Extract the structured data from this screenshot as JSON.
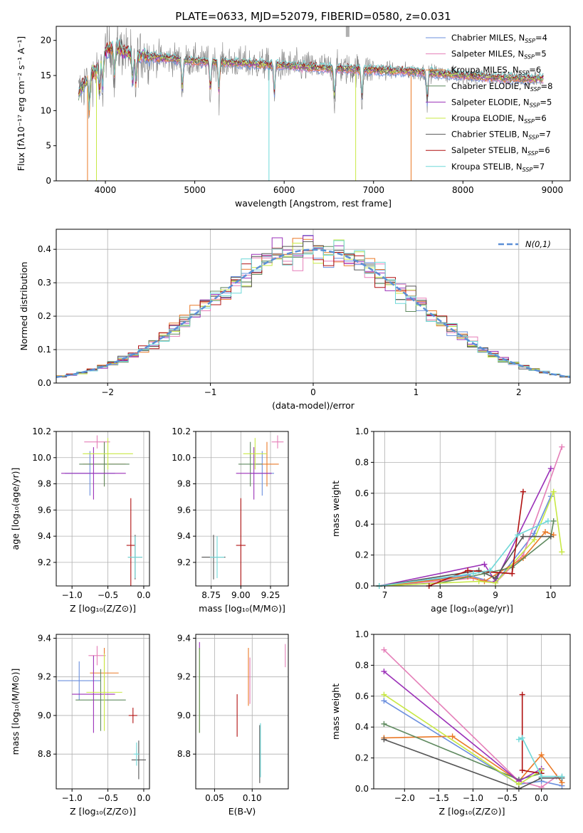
{
  "colors": {
    "Chabrier MILES": "#6b8fde",
    "Salpeter MILES": "#e57fb8",
    "Kroupa MILES": "#ea7a28",
    "Chabrier ELODIE": "#5f8a5f",
    "Salpeter ELODIE": "#9b30b8",
    "Kroupa ELODIE": "#c8e845",
    "Chabrier STELIB": "#555555",
    "Salpeter STELIB": "#b01010",
    "Kroupa STELIB": "#6fd8d8"
  },
  "chart_data": [
    {
      "id": "spectrum",
      "type": "line",
      "title": "PLATE=0633, MJD=52079, FIBERID=0580, z=0.031",
      "xlabel": "wavelength [Angstrom, rest frame]",
      "ylabel": "Flux [fλ10⁻¹⁷ erg cm⁻² s⁻¹ A⁻¹]",
      "xlim": [
        3450,
        9200
      ],
      "ylim": [
        0,
        22
      ],
      "xticks": [
        4000,
        5000,
        6000,
        7000,
        8000,
        9000
      ],
      "yticks": [
        0,
        5,
        10,
        15,
        20
      ],
      "legend_position": "top-right",
      "legend": [
        {
          "label": "Chabrier MILES, N",
          "sub": "SSP",
          "n": "=4",
          "series": "Chabrier MILES"
        },
        {
          "label": "Salpeter MILES, N",
          "sub": "SSP",
          "n": "=5",
          "series": "Salpeter MILES"
        },
        {
          "label": "Kroupa MILES, N",
          "sub": "SSP",
          "n": "=6",
          "series": "Kroupa MILES"
        },
        {
          "label": "Chabrier ELODIE, N",
          "sub": "SSP",
          "n": "=8",
          "series": "Chabrier ELODIE"
        },
        {
          "label": "Salpeter ELODIE, N",
          "sub": "SSP",
          "n": "=5",
          "series": "Salpeter ELODIE"
        },
        {
          "label": "Kroupa ELODIE, N",
          "sub": "SSP",
          "n": "=6",
          "series": "Kroupa ELODIE"
        },
        {
          "label": "Chabrier STELIB, N",
          "sub": "SSP",
          "n": "=7",
          "series": "Chabrier STELIB"
        },
        {
          "label": "Salpeter STELIB, N",
          "sub": "SSP",
          "n": "=6",
          "series": "Salpeter STELIB"
        },
        {
          "label": "Kroupa STELIB, N",
          "sub": "SSP",
          "n": "=7",
          "series": "Kroupa STELIB"
        }
      ],
      "continuum": [
        [
          3700,
          12.5
        ],
        [
          3800,
          14.5
        ],
        [
          3900,
          15.8
        ],
        [
          4000,
          18.5
        ],
        [
          4100,
          19.0
        ],
        [
          4300,
          18.0
        ],
        [
          4500,
          17.6
        ],
        [
          4800,
          17.3
        ],
        [
          5000,
          17.0
        ],
        [
          5500,
          16.8
        ],
        [
          6000,
          16.4
        ],
        [
          6500,
          16.0
        ],
        [
          7000,
          15.8
        ],
        [
          7500,
          15.5
        ],
        [
          8000,
          15.0
        ],
        [
          8500,
          14.6
        ],
        [
          8900,
          14.5
        ]
      ],
      "absorption_lines": [
        3820,
        3935,
        3970,
        4102,
        4305,
        4341,
        4861,
        5175,
        5270,
        5890,
        6563,
        6870,
        7600
      ]
    },
    {
      "id": "residuals",
      "type": "histogram",
      "xlabel": "(data-model)/error",
      "ylabel": "Normed distribution",
      "xlim": [
        -2.5,
        2.5
      ],
      "ylim": [
        0,
        0.46
      ],
      "xticks": [
        -2,
        -1,
        0,
        1,
        2
      ],
      "yticks": [
        0.0,
        0.1,
        0.2,
        0.3,
        0.4
      ],
      "bin_width": 0.1,
      "legend_label": "N(0,1)",
      "reference": {
        "name": "N(0,1)",
        "mean": 0,
        "sigma": 1
      }
    },
    {
      "id": "age-vs-Z",
      "type": "errorbar",
      "xlabel": "Z [log₁₀(Z/Z⊙)]",
      "ylabel": "age  [log₁₀(age/yr)]",
      "xlim": [
        -1.22,
        0.08
      ],
      "ylim": [
        9.02,
        10.2
      ],
      "xticks": [
        -1.0,
        -0.5,
        0.0
      ],
      "yticks": [
        9.2,
        9.4,
        9.6,
        9.8,
        10.0,
        10.2
      ],
      "points": [
        {
          "series": "Chabrier MILES",
          "x": -0.75,
          "xerr": 0.35,
          "y": 9.88,
          "yerr": 0.17
        },
        {
          "series": "Salpeter MILES",
          "x": -0.65,
          "xerr": 0.18,
          "y": 10.12,
          "yerr": 0.05
        },
        {
          "series": "Kroupa MILES",
          "x": -0.55,
          "xerr": 0.3,
          "y": 9.95,
          "yerr": 0.17
        },
        {
          "series": "Chabrier ELODIE",
          "x": -0.55,
          "xerr": 0.35,
          "y": 9.95,
          "yerr": 0.17
        },
        {
          "series": "Salpeter ELODIE",
          "x": -0.7,
          "xerr": 0.45,
          "y": 9.88,
          "yerr": 0.2
        },
        {
          "series": "Kroupa ELODIE",
          "x": -0.5,
          "xerr": 0.35,
          "y": 10.03,
          "yerr": 0.12
        },
        {
          "series": "Chabrier STELIB",
          "x": -0.12,
          "xerr": 0.1,
          "y": 9.24,
          "yerr": 0.17
        },
        {
          "series": "Salpeter STELIB",
          "x": -0.18,
          "xerr": 0.06,
          "y": 9.33,
          "yerr": 0.36
        },
        {
          "series": "Kroupa STELIB",
          "x": -0.12,
          "xerr": 0.1,
          "y": 9.24,
          "yerr": 0.16
        }
      ]
    },
    {
      "id": "age-vs-mass",
      "type": "errorbar",
      "xlabel": "mass [log₁₀(M/M⊙)]",
      "xlim": [
        8.62,
        9.4
      ],
      "ylim": [
        9.02,
        10.2
      ],
      "xticks": [
        8.75,
        9.0,
        9.25
      ],
      "yticks": [
        9.2,
        9.4,
        9.6,
        9.8,
        10.0,
        10.2
      ],
      "points": [
        {
          "series": "Chabrier MILES",
          "x": 9.18,
          "xerr": 0.1,
          "y": 9.88,
          "yerr": 0.17
        },
        {
          "series": "Salpeter MILES",
          "x": 9.31,
          "xerr": 0.05,
          "y": 10.12,
          "yerr": 0.05
        },
        {
          "series": "Kroupa MILES",
          "x": 9.22,
          "xerr": 0.1,
          "y": 9.95,
          "yerr": 0.17
        },
        {
          "series": "Chabrier ELODIE",
          "x": 9.08,
          "xerr": 0.1,
          "y": 9.95,
          "yerr": 0.17
        },
        {
          "series": "Salpeter ELODIE",
          "x": 9.11,
          "xerr": 0.15,
          "y": 9.88,
          "yerr": 0.2
        },
        {
          "series": "Kroupa ELODIE",
          "x": 9.12,
          "xerr": 0.1,
          "y": 10.03,
          "yerr": 0.12
        },
        {
          "series": "Chabrier STELIB",
          "x": 8.77,
          "xerr": 0.1,
          "y": 9.24,
          "yerr": 0.17
        },
        {
          "series": "Salpeter STELIB",
          "x": 9.0,
          "xerr": 0.04,
          "y": 9.33,
          "yerr": 0.36
        },
        {
          "series": "Kroupa STELIB",
          "x": 8.8,
          "xerr": 0.06,
          "y": 9.24,
          "yerr": 0.16
        }
      ]
    },
    {
      "id": "mass-weight-vs-age",
      "type": "line",
      "xlabel": "age  [log₁₀(age/yr)]",
      "ylabel": "mass weight",
      "xlim": [
        6.8,
        10.35
      ],
      "ylim": [
        0,
        1.0
      ],
      "xticks": [
        7,
        8,
        9,
        10
      ],
      "yticks": [
        0.0,
        0.2,
        0.4,
        0.6,
        0.8,
        1.0
      ],
      "series": [
        {
          "name": "Chabrier MILES",
          "x": [
            6.9,
            8.5,
            9.0,
            9.7,
            10.0
          ],
          "y": [
            0.0,
            0.07,
            0.02,
            0.34,
            0.58
          ]
        },
        {
          "name": "Salpeter MILES",
          "x": [
            6.9,
            8.6,
            9.0,
            9.5,
            10.2
          ],
          "y": [
            0.0,
            0.05,
            0.02,
            0.2,
            0.9
          ]
        },
        {
          "name": "Kroupa MILES",
          "x": [
            6.9,
            8.5,
            8.8,
            9.5,
            9.9,
            10.05
          ],
          "y": [
            0.0,
            0.06,
            0.03,
            0.18,
            0.35,
            0.33
          ]
        },
        {
          "name": "Chabrier ELODIE",
          "x": [
            6.9,
            8.0,
            8.8,
            9.3,
            10.0,
            10.05
          ],
          "y": [
            0.0,
            0.02,
            0.08,
            0.12,
            0.32,
            0.42
          ]
        },
        {
          "name": "Salpeter ELODIE",
          "x": [
            6.9,
            8.8,
            9.0,
            10.0
          ],
          "y": [
            0.0,
            0.14,
            0.03,
            0.76
          ]
        },
        {
          "name": "Kroupa ELODIE",
          "x": [
            6.9,
            8.7,
            9.0,
            9.7,
            10.05,
            10.2
          ],
          "y": [
            0.0,
            0.03,
            0.02,
            0.3,
            0.61,
            0.22
          ]
        },
        {
          "name": "Chabrier STELIB",
          "x": [
            6.9,
            8.7,
            9.0,
            9.5,
            10.0
          ],
          "y": [
            0.0,
            0.1,
            0.05,
            0.32,
            0.32
          ]
        },
        {
          "name": "Salpeter STELIB",
          "x": [
            7.8,
            8.5,
            9.3,
            9.5
          ],
          "y": [
            0.0,
            0.1,
            0.08,
            0.61
          ]
        },
        {
          "name": "Kroupa STELIB",
          "x": [
            6.9,
            8.6,
            8.9,
            9.4,
            9.95
          ],
          "y": [
            0.0,
            0.08,
            0.1,
            0.33,
            0.42
          ]
        }
      ]
    },
    {
      "id": "mass-vs-Z",
      "type": "errorbar",
      "xlabel": "Z [log₁₀(Z/Z⊙)]",
      "ylabel": "mass [log₁₀(M/M⊙)]",
      "xlim": [
        -1.22,
        0.08
      ],
      "ylim": [
        8.62,
        9.42
      ],
      "xticks": [
        -1.0,
        -0.5,
        0.0
      ],
      "yticks": [
        8.8,
        9.0,
        9.2,
        9.4
      ],
      "points": [
        {
          "series": "Chabrier MILES",
          "x": -0.9,
          "xerr": 0.3,
          "y": 9.18,
          "yerr": 0.1
        },
        {
          "series": "Salpeter MILES",
          "x": -0.65,
          "xerr": 0.12,
          "y": 9.31,
          "yerr": 0.05
        },
        {
          "series": "Kroupa MILES",
          "x": -0.55,
          "xerr": 0.2,
          "y": 9.22,
          "yerr": 0.13
        },
        {
          "series": "Chabrier ELODIE",
          "x": -0.6,
          "xerr": 0.35,
          "y": 9.08,
          "yerr": 0.16
        },
        {
          "series": "Salpeter ELODIE",
          "x": -0.7,
          "xerr": 0.3,
          "y": 9.11,
          "yerr": 0.2
        },
        {
          "series": "Kroupa ELODIE",
          "x": -0.55,
          "xerr": 0.25,
          "y": 9.12,
          "yerr": 0.2
        },
        {
          "series": "Chabrier STELIB",
          "x": -0.07,
          "xerr": 0.1,
          "y": 8.77,
          "yerr": 0.1
        },
        {
          "series": "Salpeter STELIB",
          "x": -0.15,
          "xerr": 0.06,
          "y": 9.0,
          "yerr": 0.04
        },
        {
          "series": "Kroupa STELIB",
          "x": -0.1,
          "xerr": 0.04,
          "y": 8.8,
          "yerr": 0.06
        }
      ]
    },
    {
      "id": "mass-vs-EBV",
      "type": "errorbar",
      "xlabel": "E(B-V)",
      "xlim": [
        0.025,
        0.148
      ],
      "ylim": [
        8.62,
        9.42
      ],
      "xticks": [
        0.05,
        0.1
      ],
      "yticks": [
        8.8,
        9.0,
        9.2,
        9.4
      ],
      "points": [
        {
          "series": "Salpeter ELODIE",
          "x": 0.03,
          "y": 9.36,
          "yerr": 0.02
        },
        {
          "series": "Kroupa ELODIE",
          "x": 0.03,
          "y": 9.13,
          "yerr": 0.22
        },
        {
          "series": "Chabrier ELODIE",
          "x": 0.03,
          "y": 9.13,
          "yerr": 0.22
        },
        {
          "series": "Salpeter STELIB",
          "x": 0.08,
          "y": 9.0,
          "yerr": 0.11
        },
        {
          "series": "Kroupa MILES",
          "x": 0.095,
          "y": 9.2,
          "yerr": 0.15
        },
        {
          "series": "Salpeter MILES",
          "x": 0.097,
          "y": 9.18,
          "yerr": 0.12
        },
        {
          "series": "Chabrier STELIB",
          "x": 0.11,
          "y": 8.8,
          "yerr": 0.15
        },
        {
          "series": "Kroupa STELIB",
          "x": 0.111,
          "y": 8.82,
          "yerr": 0.14
        },
        {
          "series": "Salpeter MILES",
          "x": 0.144,
          "y": 9.31,
          "yerr": 0.06
        }
      ]
    },
    {
      "id": "mass-weight-vs-Z",
      "type": "line",
      "xlabel": "Z [log₁₀(Z/Z⊙)]",
      "ylabel": "mass weight",
      "xlim": [
        -2.45,
        0.42
      ],
      "ylim": [
        0,
        1.0
      ],
      "xticks": [
        -2.0,
        -1.5,
        -1.0,
        -0.5,
        0.0
      ],
      "yticks": [
        0.0,
        0.2,
        0.4,
        0.6,
        0.8,
        1.0
      ],
      "series": [
        {
          "name": "Chabrier MILES",
          "x": [
            -2.3,
            -0.33,
            0.0,
            0.3
          ],
          "y": [
            0.57,
            0.03,
            0.05,
            0.02
          ]
        },
        {
          "name": "Salpeter MILES",
          "x": [
            -2.3,
            -0.33,
            0.0,
            0.22
          ],
          "y": [
            0.9,
            0.05,
            0.01,
            0.08
          ]
        },
        {
          "name": "Kroupa MILES",
          "x": [
            -2.3,
            -1.3,
            -0.33,
            0.0,
            0.3
          ],
          "y": [
            0.33,
            0.34,
            0.05,
            0.22,
            0.04
          ]
        },
        {
          "name": "Chabrier ELODIE",
          "x": [
            -2.3,
            -0.33,
            0.0
          ],
          "y": [
            0.42,
            0.06,
            0.1
          ]
        },
        {
          "name": "Salpeter ELODIE",
          "x": [
            -2.3,
            -0.33,
            0.0
          ],
          "y": [
            0.76,
            0.05,
            0.13
          ]
        },
        {
          "name": "Kroupa ELODIE",
          "x": [
            -2.3,
            -0.33,
            0.0
          ],
          "y": [
            0.61,
            0.03,
            0.12
          ]
        },
        {
          "name": "Chabrier STELIB",
          "x": [
            -2.3,
            -0.33,
            0.0,
            0.3
          ],
          "y": [
            0.32,
            0.0,
            0.07,
            0.07
          ]
        },
        {
          "name": "Salpeter STELIB",
          "x": [
            -0.28,
            -0.28,
            0.0
          ],
          "y": [
            0.61,
            0.12,
            0.1
          ]
        },
        {
          "name": "Kroupa STELIB",
          "x": [
            -0.33,
            -0.28,
            0.0,
            0.3
          ],
          "y": [
            0.32,
            0.33,
            0.08,
            0.08
          ]
        }
      ]
    }
  ]
}
